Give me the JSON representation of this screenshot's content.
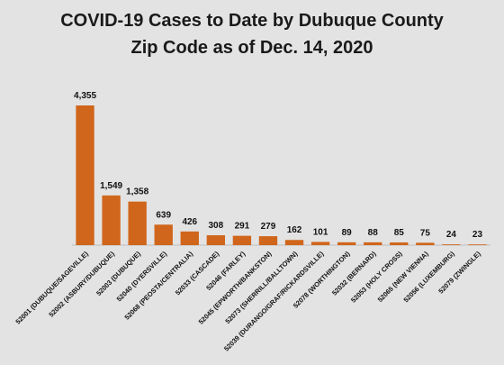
{
  "chart_data": {
    "type": "bar",
    "title_line1": "COVID-19 Cases to Date by Dubuque County",
    "title_line2": "Zip Code as of Dec. 14, 2020",
    "bar_color": "#d0661b",
    "categories": [
      "52001 (DUBUQUE/SAGEVILLE)",
      "52002 (ASBURY/DUBUQUE)",
      "52003 (DUBUQUE)",
      "52040 (DYERSVILLE)",
      "52068 (PEOSTA/CENTRALIA)",
      "52033 (CASCADE)",
      "52046 (FARLEY)",
      "52045 (EPWORTH/BANKSTON)",
      "52073 (SHERRILL/BALLTOWN)",
      "52039 (DURANGO/GRAF/RICKARDSVILLE)",
      "52078 (WORTHINGTON)",
      "52032 (BERNARD)",
      "52053 (HOLY CROSS)",
      "52065 (NEW VIENNA)",
      "52056 (LUXEMBURG)",
      "52079 (ZWINGLE)"
    ],
    "values": [
      4355,
      1549,
      1358,
      639,
      426,
      308,
      291,
      279,
      162,
      101,
      89,
      88,
      85,
      75,
      24,
      23
    ],
    "value_labels": [
      "4,355",
      "1,549",
      "1,358",
      "639",
      "426",
      "308",
      "291",
      "279",
      "162",
      "101",
      "89",
      "88",
      "85",
      "75",
      "24",
      "23"
    ],
    "ylim": [
      0,
      4355
    ],
    "grid": false,
    "legend": "none"
  }
}
